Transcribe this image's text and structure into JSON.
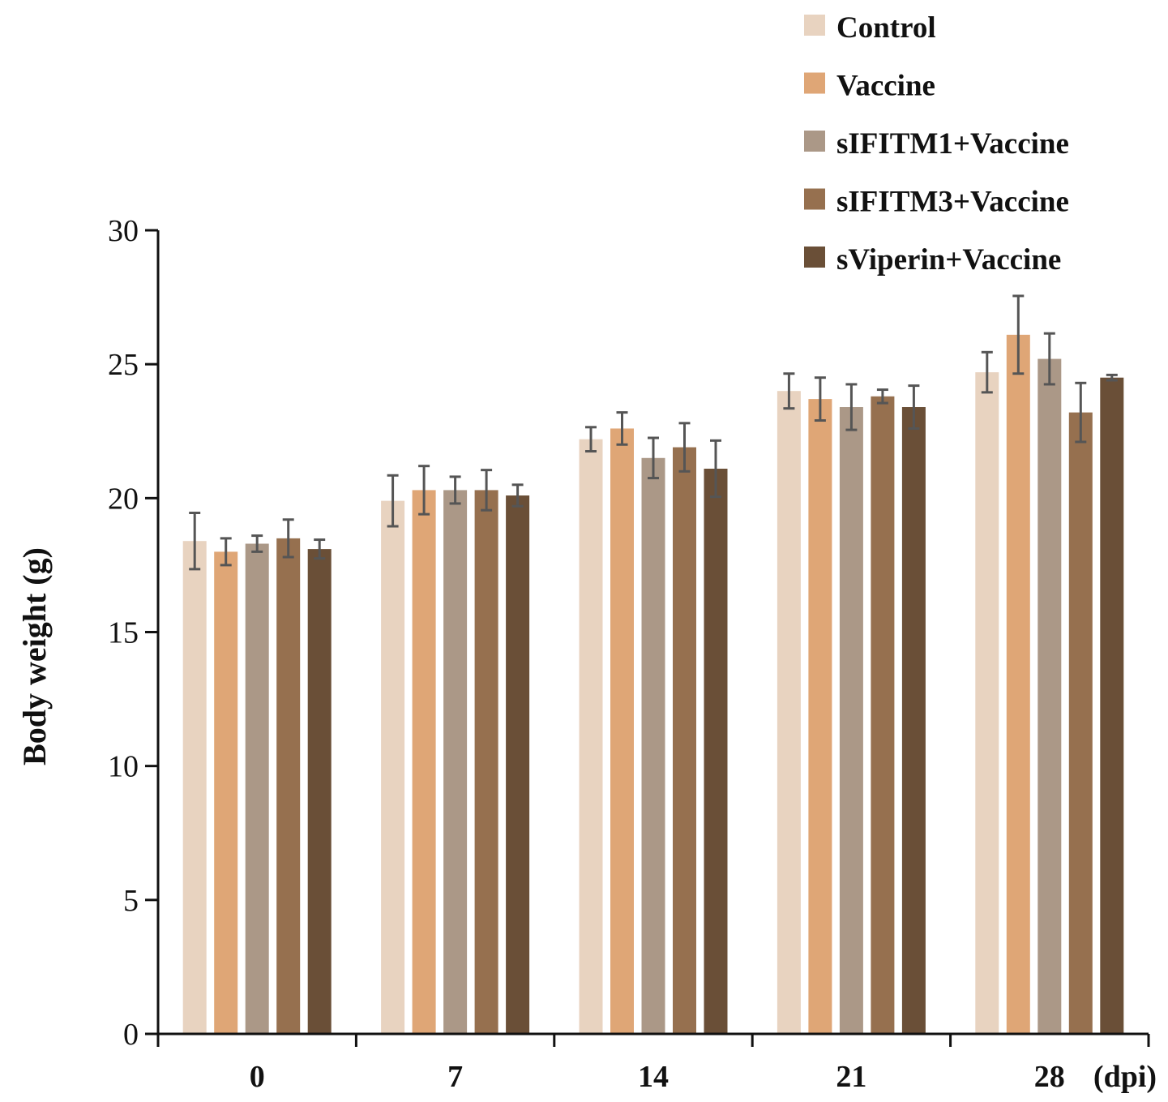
{
  "chart_data": {
    "type": "bar",
    "title": "",
    "xlabel": "",
    "x_unit": "(dpi)",
    "ylabel": "Body weight (g)",
    "ylim": [
      0,
      30
    ],
    "yticks": [
      0,
      5,
      10,
      15,
      20,
      25,
      30
    ],
    "categories": [
      "0",
      "7",
      "14",
      "21",
      "28"
    ],
    "legend_position": "top-right",
    "series": [
      {
        "name": "Control",
        "color": "#e8d3c0",
        "values": [
          18.4,
          19.9,
          22.2,
          24.0,
          24.7
        ],
        "errors": [
          1.05,
          0.95,
          0.45,
          0.65,
          0.75
        ]
      },
      {
        "name": "Vaccine",
        "color": "#dfa676",
        "values": [
          18.0,
          20.3,
          22.6,
          23.7,
          26.1
        ],
        "errors": [
          0.5,
          0.9,
          0.6,
          0.8,
          1.45
        ]
      },
      {
        "name": "sIFITM1+Vaccine",
        "color": "#ab9887",
        "values": [
          18.3,
          20.3,
          21.5,
          23.4,
          25.2
        ],
        "errors": [
          0.3,
          0.5,
          0.75,
          0.85,
          0.95
        ]
      },
      {
        "name": "sIFITM3+Vaccine",
        "color": "#96704f",
        "values": [
          18.5,
          20.3,
          21.9,
          23.8,
          23.2
        ],
        "errors": [
          0.7,
          0.75,
          0.9,
          0.25,
          1.1
        ]
      },
      {
        "name": "sViperin+Vaccine",
        "color": "#6a4f37",
        "values": [
          18.1,
          20.1,
          21.1,
          23.4,
          24.5
        ],
        "errors": [
          0.35,
          0.4,
          1.05,
          0.8,
          0.1
        ]
      }
    ]
  }
}
